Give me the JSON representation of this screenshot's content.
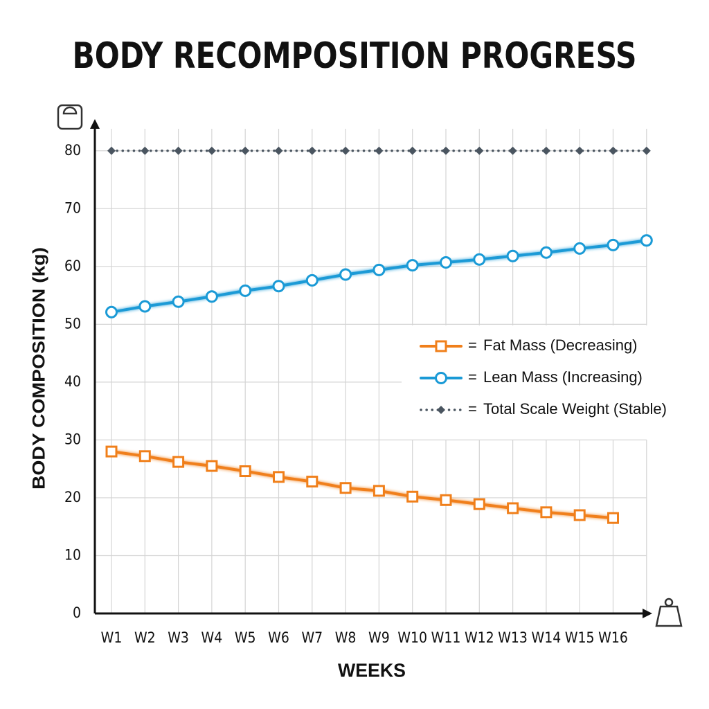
{
  "chart_data": {
    "type": "line",
    "title": "BODY RECOMPOSITION PROGRESS",
    "y_label": "BODY COMPOSITION (kg)",
    "x_label": "WEEKS",
    "categories": [
      "W1",
      "W2",
      "W3",
      "W4",
      "W5",
      "W6",
      "W7",
      "W8",
      "W9",
      "W10",
      "W11",
      "W12",
      "W13",
      "W14",
      "W15",
      "W16",
      null
    ],
    "series": [
      {
        "name": "Fat Mass (Decreasing)",
        "color": "#f07f1a",
        "marker": "square",
        "style": "solid",
        "values": [
          28.0,
          27.2,
          26.2,
          25.5,
          24.6,
          23.6,
          22.8,
          21.7,
          21.2,
          20.2,
          19.6,
          18.9,
          18.2,
          17.5,
          17.0,
          16.5,
          null
        ]
      },
      {
        "name": "Lean Mass (Increasing)",
        "color": "#1a9ad6",
        "marker": "circle",
        "style": "solid",
        "values": [
          52.1,
          53.1,
          53.9,
          54.8,
          55.8,
          56.6,
          57.6,
          58.6,
          59.4,
          60.2,
          60.7,
          61.2,
          61.8,
          62.4,
          63.1,
          63.7,
          64.5
        ]
      },
      {
        "name": "Total Scale Weight (Stable)",
        "color": "#4a5560",
        "marker": "diamond",
        "style": "dotted",
        "values": [
          80,
          80,
          80,
          80,
          80,
          80,
          80,
          80,
          80,
          80,
          80,
          80,
          80,
          80,
          80,
          80,
          80
        ]
      }
    ],
    "legend_separator": "=",
    "ylim": [
      0,
      85
    ],
    "yticks": [
      0,
      10,
      20,
      30,
      40,
      50,
      60,
      70,
      80
    ],
    "grid": true,
    "legend": "right"
  }
}
